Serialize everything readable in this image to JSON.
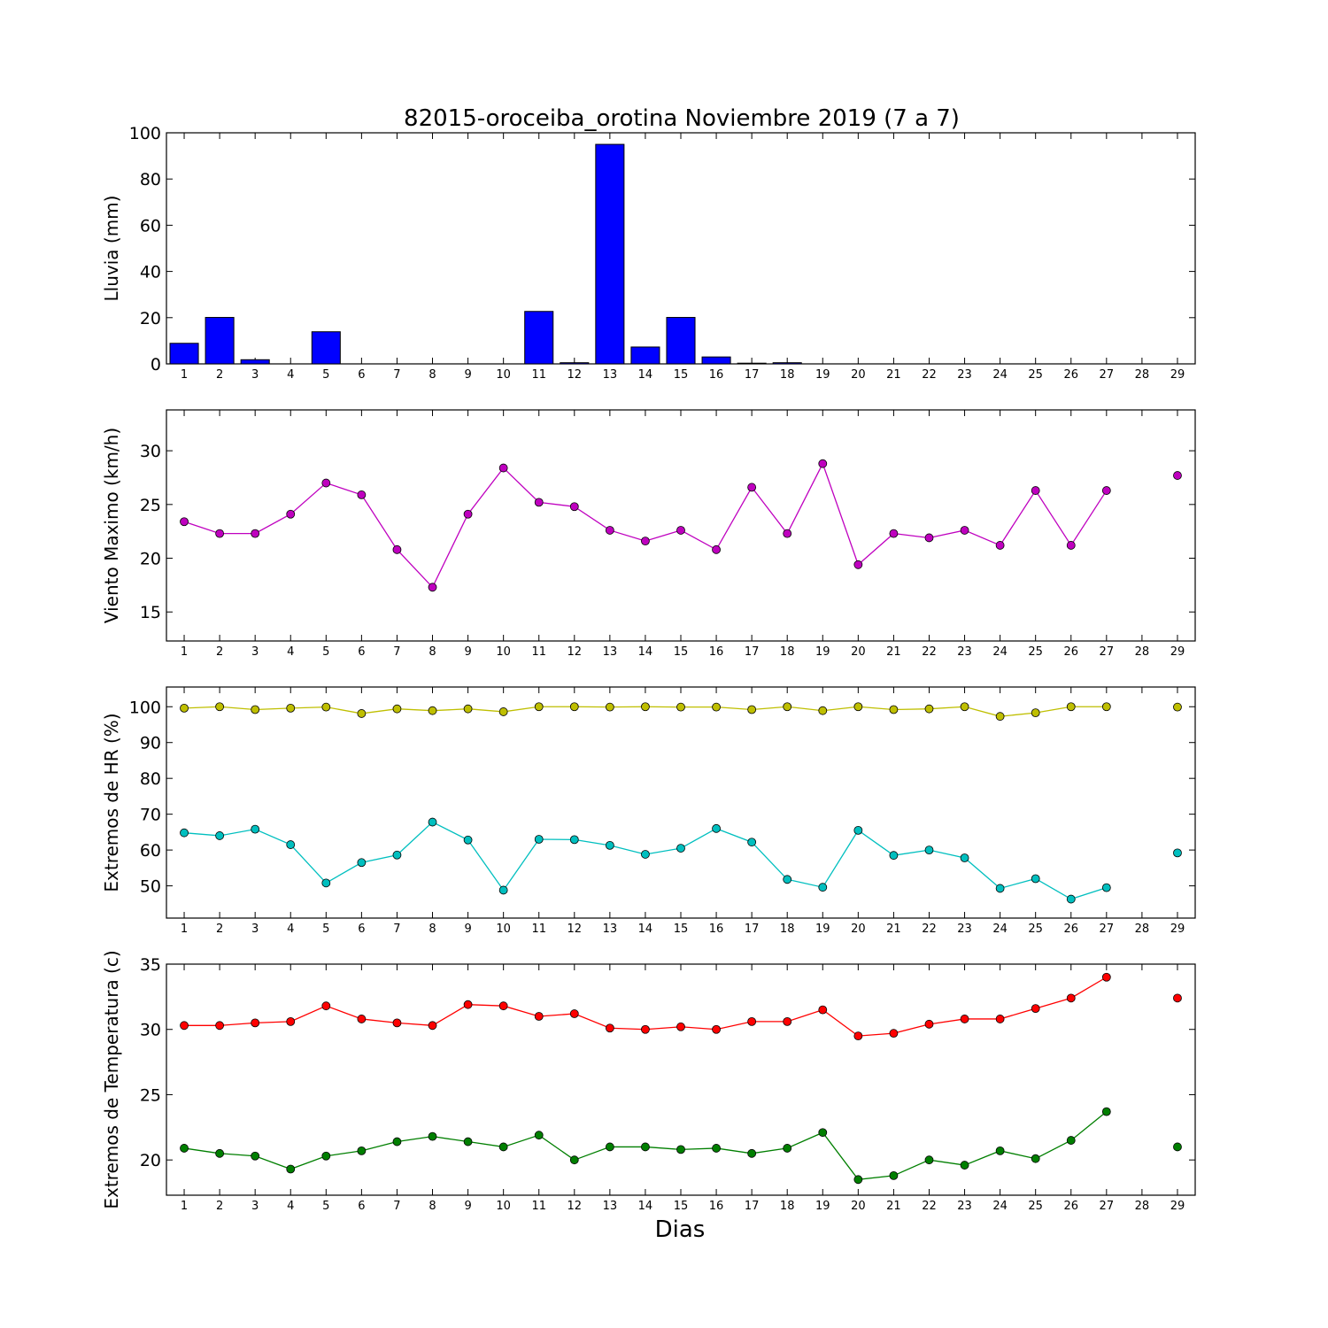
{
  "figure": {
    "title": "82015-oroceiba_orotina Noviembre 2019  (7 a 7)",
    "xlabel": "Dias"
  },
  "chart_data": [
    {
      "type": "bar",
      "ylabel": "Lluvia (mm)",
      "ylim": [
        0,
        100
      ],
      "yticks": [
        0,
        20,
        40,
        60,
        80,
        100
      ],
      "x": [
        1,
        2,
        3,
        4,
        5,
        6,
        7,
        8,
        9,
        10,
        11,
        12,
        13,
        14,
        15,
        16,
        17,
        18,
        19,
        20,
        21,
        22,
        23,
        24,
        25,
        26,
        27,
        28,
        29
      ],
      "xticks": [
        1,
        2,
        3,
        4,
        5,
        6,
        7,
        8,
        9,
        10,
        11,
        12,
        13,
        14,
        15,
        16,
        17,
        18,
        19,
        20,
        21,
        22,
        23,
        24,
        25,
        26,
        27,
        28,
        29
      ],
      "xlim": [
        0.5,
        29.5
      ],
      "values": [
        8.9,
        20.1,
        1.8,
        0,
        13.9,
        0,
        0,
        0,
        0,
        0,
        22.7,
        0.5,
        95.0,
        7.3,
        20.1,
        3.0,
        0.3,
        0.5,
        0,
        0,
        0,
        0,
        0,
        0,
        0,
        0,
        0,
        0,
        0
      ],
      "color": "#0000ff"
    },
    {
      "type": "line",
      "ylabel": "Viento Maximo (km/h)",
      "ylim": [
        12.3,
        33.8
      ],
      "yticks": [
        15,
        20,
        25,
        30
      ],
      "xticks": [
        1,
        2,
        3,
        4,
        5,
        6,
        7,
        8,
        9,
        10,
        11,
        12,
        13,
        14,
        15,
        16,
        17,
        18,
        19,
        20,
        21,
        22,
        23,
        24,
        25,
        26,
        27,
        28,
        29
      ],
      "xlim": [
        0.5,
        29.5
      ],
      "series": [
        {
          "color": "#bf00bf",
          "x": [
            1,
            2,
            3,
            4,
            5,
            6,
            7,
            8,
            9,
            10,
            11,
            12,
            13,
            14,
            15,
            16,
            17,
            18,
            19,
            20,
            21,
            22,
            23,
            24,
            25,
            26,
            27,
            28,
            29
          ],
          "values": [
            23.4,
            22.3,
            22.3,
            24.1,
            27.0,
            25.9,
            20.8,
            17.3,
            24.1,
            28.4,
            25.2,
            24.8,
            22.6,
            21.6,
            22.6,
            20.8,
            26.6,
            22.3,
            28.8,
            19.4,
            22.3,
            21.9,
            22.6,
            21.2,
            26.3,
            21.2,
            26.3,
            null,
            27.7
          ]
        }
      ]
    },
    {
      "type": "line",
      "ylabel": "Extremos de HR (%)",
      "ylim": [
        41,
        105.5
      ],
      "yticks": [
        50,
        60,
        70,
        80,
        90,
        100
      ],
      "xticks": [
        1,
        2,
        3,
        4,
        5,
        6,
        7,
        8,
        9,
        10,
        11,
        12,
        13,
        14,
        15,
        16,
        17,
        18,
        19,
        20,
        21,
        22,
        23,
        24,
        25,
        26,
        27,
        28,
        29
      ],
      "xlim": [
        0.5,
        29.5
      ],
      "series": [
        {
          "color": "#bfbf00",
          "x": [
            1,
            2,
            3,
            4,
            5,
            6,
            7,
            8,
            9,
            10,
            11,
            12,
            13,
            14,
            15,
            16,
            17,
            18,
            19,
            20,
            21,
            22,
            23,
            24,
            25,
            26,
            27,
            28,
            29
          ],
          "values": [
            99.6,
            100,
            99.2,
            99.6,
            99.9,
            98.1,
            99.4,
            98.9,
            99.4,
            98.6,
            100,
            100,
            99.9,
            100,
            99.9,
            99.9,
            99.2,
            100,
            98.9,
            100,
            99.2,
            99.4,
            100,
            97.3,
            98.3,
            100,
            100,
            null,
            99.9
          ]
        },
        {
          "color": "#00bfbf",
          "x": [
            1,
            2,
            3,
            4,
            5,
            6,
            7,
            8,
            9,
            10,
            11,
            12,
            13,
            14,
            15,
            16,
            17,
            18,
            19,
            20,
            21,
            22,
            23,
            24,
            25,
            26,
            27,
            28,
            29
          ],
          "values": [
            64.8,
            64.0,
            65.8,
            61.5,
            50.8,
            56.5,
            58.6,
            67.8,
            62.8,
            48.8,
            63.0,
            62.9,
            61.3,
            58.8,
            60.5,
            66.0,
            62.2,
            51.8,
            49.6,
            65.5,
            58.5,
            60.0,
            57.8,
            49.3,
            52.0,
            46.3,
            49.5,
            null,
            59.2
          ]
        }
      ]
    },
    {
      "type": "line",
      "ylabel": "Extremos de Temperatura (c)",
      "ylim": [
        17.3,
        35
      ],
      "yticks": [
        20,
        25,
        30,
        35
      ],
      "xticks": [
        1,
        2,
        3,
        4,
        5,
        6,
        7,
        8,
        9,
        10,
        11,
        12,
        13,
        14,
        15,
        16,
        17,
        18,
        19,
        20,
        21,
        22,
        23,
        24,
        25,
        26,
        27,
        28,
        29
      ],
      "xlim": [
        0.5,
        29.5
      ],
      "series": [
        {
          "color": "#ff0000",
          "x": [
            1,
            2,
            3,
            4,
            5,
            6,
            7,
            8,
            9,
            10,
            11,
            12,
            13,
            14,
            15,
            16,
            17,
            18,
            19,
            20,
            21,
            22,
            23,
            24,
            25,
            26,
            27,
            28,
            29
          ],
          "values": [
            30.3,
            30.3,
            30.5,
            30.6,
            31.8,
            30.8,
            30.5,
            30.3,
            31.9,
            31.8,
            31.0,
            31.2,
            30.1,
            30.0,
            30.2,
            30.0,
            30.6,
            30.6,
            31.5,
            29.5,
            29.7,
            30.4,
            30.8,
            30.8,
            31.6,
            32.4,
            34.0,
            null,
            32.4
          ]
        },
        {
          "color": "#007f00",
          "x": [
            1,
            2,
            3,
            4,
            5,
            6,
            7,
            8,
            9,
            10,
            11,
            12,
            13,
            14,
            15,
            16,
            17,
            18,
            19,
            20,
            21,
            22,
            23,
            24,
            25,
            26,
            27,
            28,
            29
          ],
          "values": [
            20.9,
            20.5,
            20.3,
            19.3,
            20.3,
            20.7,
            21.4,
            21.8,
            21.4,
            21.0,
            21.9,
            20.0,
            21.0,
            21.0,
            20.8,
            20.9,
            20.5,
            20.9,
            22.1,
            18.5,
            18.8,
            20.0,
            19.6,
            20.7,
            20.1,
            21.5,
            23.7,
            null,
            21.0
          ]
        }
      ]
    }
  ]
}
